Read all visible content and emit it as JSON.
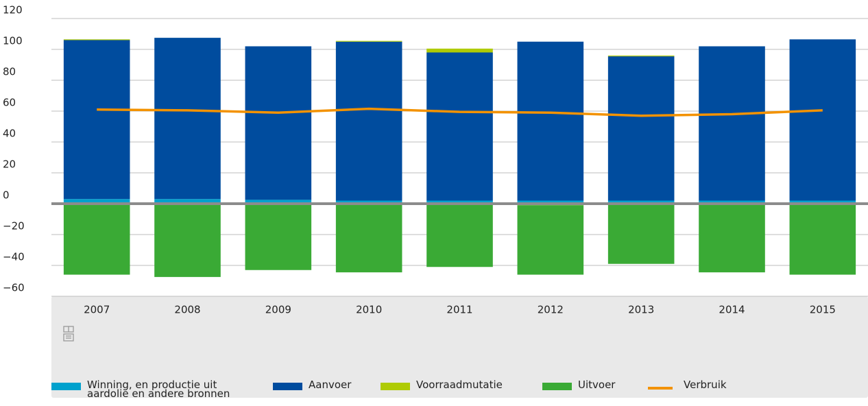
{
  "chart_data": {
    "type": "bar",
    "stacked": true,
    "categories": [
      "2007",
      "2008",
      "2009",
      "2010",
      "2011",
      "2012",
      "2013",
      "2014",
      "2015"
    ],
    "series": [
      {
        "name": "Winning, en productie uit aardolie en andere bronnen",
        "color": "#00a1cd",
        "values": [
          3,
          3,
          2.5,
          2,
          2,
          2,
          2,
          2,
          2
        ]
      },
      {
        "name": "Aanvoer",
        "color": "#004c9e",
        "values": [
          103,
          104.5,
          99.5,
          103,
          96,
          103,
          93.5,
          100,
          104.5
        ]
      },
      {
        "name": "Voorraadmutatie",
        "color": "#afcb05",
        "values": [
          0.5,
          0,
          0,
          0.5,
          2.5,
          -1,
          0.5,
          0,
          -0.5
        ]
      },
      {
        "name": "Uitvoer",
        "color": "#3aaa35",
        "values": [
          -46,
          -47.5,
          -43,
          -44.5,
          -41,
          -45,
          -39,
          -44.5,
          -45.5
        ]
      },
      {
        "name": "Verbruik",
        "color": "#f39200",
        "type": "line",
        "values": [
          61,
          60.5,
          59,
          61.5,
          59.5,
          59,
          57,
          58,
          60.5
        ]
      }
    ],
    "ylim": [
      -60,
      120
    ],
    "yticks": [
      {
        "value": -60,
        "label": "−60"
      },
      {
        "value": -40,
        "label": "−40"
      },
      {
        "value": -20,
        "label": "−20"
      },
      0,
      20,
      40,
      60,
      80,
      100,
      120
    ],
    "grid": true,
    "legend": "bottom"
  }
}
